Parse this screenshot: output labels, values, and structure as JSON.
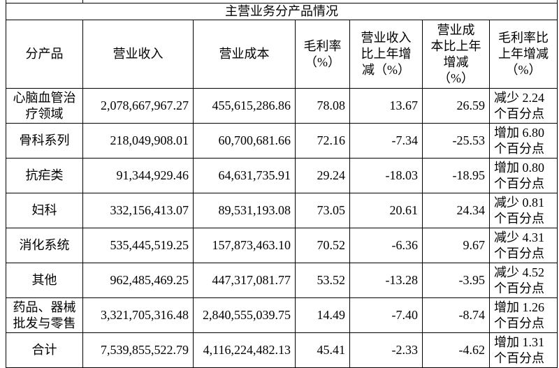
{
  "table": {
    "title": "主营业务分产品情况",
    "header": [
      "分产品",
      "营业收入",
      "营业成本",
      [
        "毛利率",
        "（%）"
      ],
      [
        "营业收入",
        "比上年增",
        "减（%）"
      ],
      [
        "营业成",
        "本比上年",
        "增减",
        "（%）"
      ],
      [
        "毛利率比",
        "上年增减",
        "（%）"
      ]
    ],
    "rows": [
      [
        [
          "心脑血管治",
          "疗领域"
        ],
        "2,078,667,967.27",
        "455,615,286.86",
        "78.08",
        "13.67",
        "26.59",
        [
          "减少 2.24",
          "个百分点"
        ]
      ],
      [
        "骨科系列",
        "218,049,908.01",
        "60,700,681.66",
        "72.16",
        "-7.34",
        "-25.53",
        [
          "增加 6.80",
          "个百分点"
        ]
      ],
      [
        "抗疟类",
        "91,344,929.46",
        "64,631,735.91",
        "29.24",
        "-18.03",
        "-18.95",
        [
          "增加 0.80",
          "个百分点"
        ]
      ],
      [
        "妇科",
        "332,156,413.07",
        "89,531,193.08",
        "73.05",
        "20.61",
        "24.34",
        [
          "减少 0.81",
          "个百分点"
        ]
      ],
      [
        "消化系统",
        "535,445,519.25",
        "157,873,463.10",
        "70.52",
        "-6.36",
        "9.67",
        [
          "减少 4.31",
          "个百分点"
        ]
      ],
      [
        "其他",
        "962,485,469.25",
        "447,317,081.77",
        "53.52",
        "-13.28",
        "-3.95",
        [
          "减少 4.52",
          "个百分点"
        ]
      ],
      [
        [
          "药品、器械",
          "批发与零售"
        ],
        "3,321,705,316.48",
        "2,840,555,039.75",
        "14.49",
        "-7.40",
        "-8.74",
        [
          "增加 1.26",
          "个百分点"
        ]
      ],
      [
        "合计",
        "7,539,855,522.79",
        "4,116,224,482.13",
        "45.41",
        "-2.33",
        "-4.62",
        [
          "增加 1.31",
          "个百分点"
        ]
      ]
    ]
  }
}
